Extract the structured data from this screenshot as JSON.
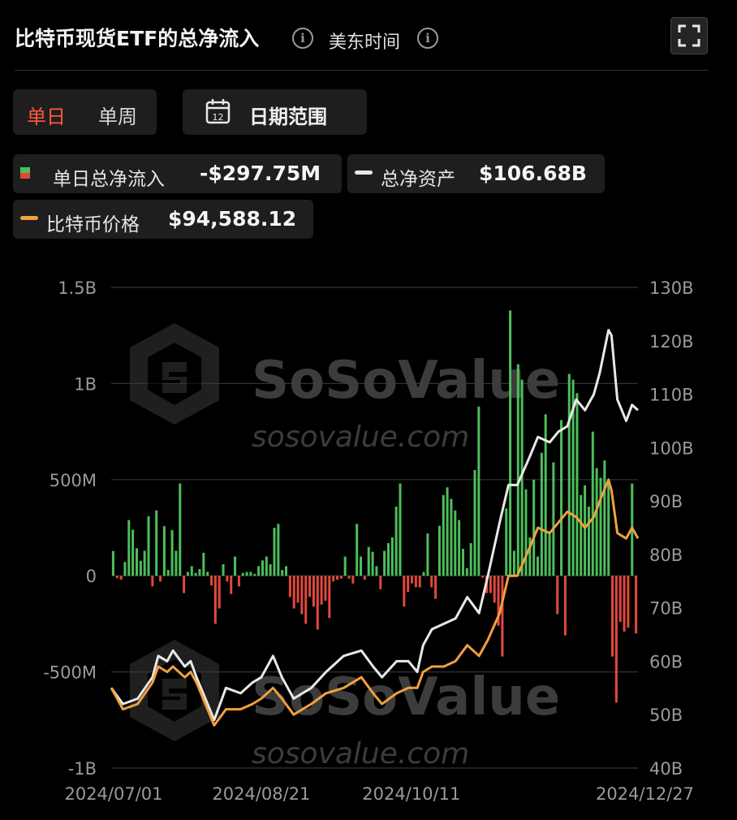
{
  "header": {
    "title": "比特币现货ETF的总净流入",
    "timezone": "美东时间"
  },
  "toggle": {
    "daily": "单日",
    "weekly": "单周",
    "active": "daily"
  },
  "range_button": {
    "label": "日期范围",
    "icon_number": "12"
  },
  "legend": {
    "net_inflow": {
      "label": "单日总净流入",
      "value": "-$297.75M"
    },
    "net_assets": {
      "label": "总净资产",
      "value": "$106.68B"
    },
    "btc_price": {
      "label": "比特币价格",
      "value": "$94,588.12"
    }
  },
  "watermark": {
    "brand": "SoSoValue",
    "url": "sosovalue.com"
  },
  "colors": {
    "inflow": "#4cbe5c",
    "outflow": "#e0493c",
    "assets": "#e8e8e8",
    "price": "#f0a040",
    "active_tab": "#ff5a3c"
  },
  "chart_data": {
    "type": "bar",
    "x_ticks": [
      "2024/07/01",
      "2024/08/21",
      "2024/10/11",
      "2024/12/27"
    ],
    "x_start": "2024/07/01",
    "x_end": "2024/12/27",
    "y_left": {
      "ticks": [
        "1.5B",
        "1B",
        "500M",
        "0",
        "-500M",
        "-1B"
      ],
      "range": [
        -1000,
        1500
      ],
      "unit": "M USD"
    },
    "y_right": {
      "ticks": [
        "130B",
        "120B",
        "110B",
        "100B",
        "90B",
        "80B",
        "70B",
        "60B",
        "50B",
        "40B"
      ],
      "range": [
        40,
        130
      ],
      "unit": "B USD"
    },
    "grid": true,
    "legend_placement": "top",
    "series": [
      {
        "name": "单日总净流入",
        "type": "bar",
        "values": [
          129,
          -13,
          -20,
          72,
          290,
          240,
          143,
          78,
          130,
          310,
          -55,
          340,
          -30,
          258,
          30,
          238,
          130,
          480,
          -90,
          20,
          50,
          15,
          35,
          120,
          20,
          -50,
          -250,
          -170,
          60,
          -30,
          -95,
          100,
          -55,
          15,
          20,
          20,
          10,
          50,
          80,
          100,
          60,
          250,
          270,
          30,
          50,
          -110,
          -170,
          -140,
          -200,
          -250,
          -110,
          -160,
          -280,
          -150,
          -130,
          -220,
          -30,
          -20,
          -15,
          100,
          -15,
          -40,
          270,
          100,
          -20,
          150,
          125,
          50,
          -70,
          130,
          170,
          200,
          360,
          480,
          -160,
          -85,
          -40,
          -60,
          -60,
          20,
          220,
          -60,
          -120,
          260,
          420,
          460,
          400,
          340,
          290,
          140,
          40,
          170,
          550,
          880,
          -10,
          -90,
          -90,
          -140,
          -260,
          -420,
          350,
          1380,
          130,
          1100,
          1020,
          450,
          200,
          500,
          100,
          640,
          840,
          220,
          590,
          -200,
          810,
          -310,
          1050,
          1020,
          950,
          420,
          470,
          360,
          750,
          560,
          510,
          600,
          490,
          -420,
          -660,
          -240,
          -290,
          -270,
          480,
          -300
        ],
        "color_positive": "#4cbe5c",
        "color_negative": "#e0493c"
      },
      {
        "name": "总净资产",
        "type": "line",
        "axis": "right",
        "x": [
          "2024/07/01",
          "2024/07/05",
          "2024/07/10",
          "2024/07/15",
          "2024/07/17",
          "2024/07/20",
          "2024/07/22",
          "2024/07/26",
          "2024/07/28",
          "2024/07/30",
          "2024/08/02",
          "2024/08/05",
          "2024/08/09",
          "2024/08/14",
          "2024/08/18",
          "2024/08/21",
          "2024/08/25",
          "2024/08/28",
          "2024/09/01",
          "2024/09/04",
          "2024/09/07",
          "2024/09/12",
          "2024/09/18",
          "2024/09/24",
          "2024/09/28",
          "2024/10/01",
          "2024/10/06",
          "2024/10/10",
          "2024/10/13",
          "2024/10/15",
          "2024/10/18",
          "2024/10/22",
          "2024/10/26",
          "2024/10/30",
          "2024/11/03",
          "2024/11/06",
          "2024/11/10",
          "2024/11/13",
          "2024/11/16",
          "2024/11/20",
          "2024/11/23",
          "2024/11/27",
          "2024/11/30",
          "2024/12/03",
          "2024/12/06",
          "2024/12/09",
          "2024/12/12",
          "2024/12/14",
          "2024/12/17",
          "2024/12/18",
          "2024/12/20",
          "2024/12/23",
          "2024/12/25",
          "2024/12/27"
        ],
        "values": [
          55,
          52,
          53,
          57,
          61,
          60,
          62,
          59,
          60,
          57,
          53,
          49,
          55,
          54,
          56,
          57,
          61,
          57,
          53,
          54,
          55,
          58,
          61,
          62,
          59,
          57,
          60,
          60,
          58,
          63,
          66,
          67,
          68,
          72,
          69,
          76,
          86,
          93,
          93,
          98,
          102,
          101,
          103,
          104,
          109,
          107,
          110,
          114,
          122,
          121,
          109,
          105,
          108,
          107
        ],
        "color": "#e8e8e8"
      },
      {
        "name": "比特币价格",
        "type": "line",
        "axis": "right",
        "x": [
          "2024/07/01",
          "2024/07/05",
          "2024/07/10",
          "2024/07/15",
          "2024/07/17",
          "2024/07/20",
          "2024/07/22",
          "2024/07/26",
          "2024/07/28",
          "2024/07/30",
          "2024/08/02",
          "2024/08/05",
          "2024/08/09",
          "2024/08/14",
          "2024/08/18",
          "2024/08/21",
          "2024/08/25",
          "2024/08/28",
          "2024/09/01",
          "2024/09/04",
          "2024/09/07",
          "2024/09/12",
          "2024/09/18",
          "2024/09/24",
          "2024/09/28",
          "2024/10/01",
          "2024/10/06",
          "2024/10/10",
          "2024/10/13",
          "2024/10/15",
          "2024/10/18",
          "2024/10/22",
          "2024/10/26",
          "2024/10/30",
          "2024/11/03",
          "2024/11/06",
          "2024/11/10",
          "2024/11/13",
          "2024/11/16",
          "2024/11/20",
          "2024/11/23",
          "2024/11/27",
          "2024/11/30",
          "2024/12/03",
          "2024/12/06",
          "2024/12/09",
          "2024/12/12",
          "2024/12/14",
          "2024/12/17",
          "2024/12/18",
          "2024/12/20",
          "2024/12/23",
          "2024/12/25",
          "2024/12/27"
        ],
        "values": [
          55,
          51,
          52,
          56,
          59,
          58,
          59,
          57,
          58,
          56,
          52,
          48,
          51,
          51,
          52,
          53,
          55,
          53,
          50,
          51,
          52,
          54,
          55,
          57,
          54,
          52,
          54,
          55,
          55,
          58,
          59,
          59,
          60,
          63,
          61,
          64,
          69,
          76,
          76,
          81,
          85,
          84,
          86,
          88,
          87,
          85,
          87,
          90,
          94,
          92,
          84,
          83,
          85,
          83
        ],
        "color": "#f0a040"
      }
    ]
  }
}
